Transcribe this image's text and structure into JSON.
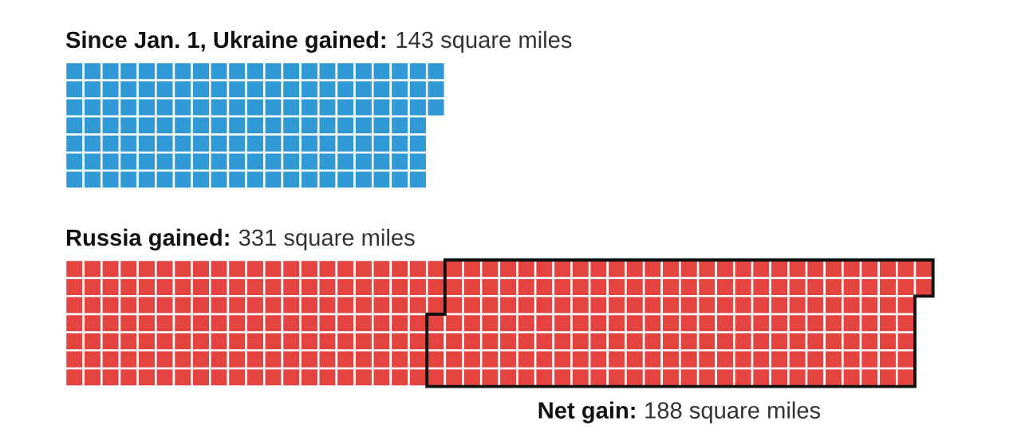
{
  "chart_data": {
    "type": "other",
    "values": [
      143,
      331
    ],
    "colors": [
      "#2f9ad6",
      "#e4433f"
    ],
    "value_labels": [
      "143 square miles",
      "331 square miles"
    ],
    "annotations": [
      "Since Jan. 1, Ukraine gained:",
      "Russia gained:",
      "Net gain:",
      "188 square miles"
    ]
  }
}
